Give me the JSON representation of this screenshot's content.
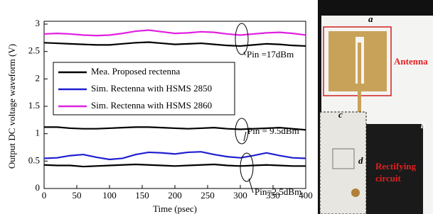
{
  "chart_data": {
    "type": "line",
    "x_label": "Time (psec)",
    "y_label": "Output DC voltage waveform (V)",
    "x": [
      0,
      20,
      40,
      60,
      80,
      100,
      120,
      140,
      160,
      180,
      200,
      220,
      240,
      260,
      280,
      300,
      320,
      340,
      360,
      380,
      400
    ],
    "series": [
      {
        "name": "Mea. Proposed rectenna",
        "color": "#000000",
        "values": [
          2.66,
          2.65,
          2.64,
          2.63,
          2.62,
          2.62,
          2.64,
          2.66,
          2.67,
          2.65,
          2.63,
          2.64,
          2.65,
          2.63,
          2.61,
          2.6,
          2.62,
          2.64,
          2.63,
          2.61,
          2.6
        ]
      },
      {
        "name": "Sim. Rectenna with HSMS 2850",
        "color": "#1f1fd0",
        "values": [
          0.55,
          0.56,
          0.6,
          0.62,
          0.57,
          0.53,
          0.55,
          0.62,
          0.66,
          0.65,
          0.63,
          0.66,
          0.67,
          0.62,
          0.58,
          0.56,
          0.6,
          0.65,
          0.6,
          0.56,
          0.55
        ]
      },
      {
        "name": "Sim. Rectenna with HSMS 2860",
        "color": "#e020e0",
        "values": [
          2.82,
          2.83,
          2.82,
          2.8,
          2.79,
          2.8,
          2.83,
          2.87,
          2.89,
          2.86,
          2.83,
          2.84,
          2.86,
          2.85,
          2.82,
          2.8,
          2.82,
          2.84,
          2.85,
          2.83,
          2.8
        ]
      },
      {
        "color": "#000000",
        "values": [
          1.12,
          1.12,
          1.1,
          1.09,
          1.09,
          1.1,
          1.11,
          1.12,
          1.12,
          1.11,
          1.1,
          1.09,
          1.1,
          1.11,
          1.09,
          1.08,
          1.09,
          1.1,
          1.11,
          1.09,
          1.07
        ]
      },
      {
        "color": "#000000",
        "values": [
          0.43,
          0.42,
          0.42,
          0.4,
          0.41,
          0.42,
          0.43,
          0.44,
          0.43,
          0.42,
          0.41,
          0.42,
          0.43,
          0.44,
          0.42,
          0.41,
          0.42,
          0.43,
          0.42,
          0.41,
          0.41
        ]
      }
    ],
    "annotations": [
      "Pin =17dBm",
      "Pin = 9.5dBm",
      "Pin=2.5dBm"
    ],
    "xlim": [
      0,
      400
    ],
    "xticks": [
      0,
      50,
      100,
      150,
      200,
      250,
      300,
      350,
      400
    ],
    "ylim": [
      0,
      3
    ],
    "yticks": [
      0,
      0.5,
      1,
      1.5,
      2,
      2.5,
      3
    ]
  },
  "photo": {
    "labels": [
      "a",
      "b",
      "c",
      "d"
    ],
    "antenna": "Antenna",
    "circuit": [
      "Rectifying",
      "circuit"
    ]
  }
}
